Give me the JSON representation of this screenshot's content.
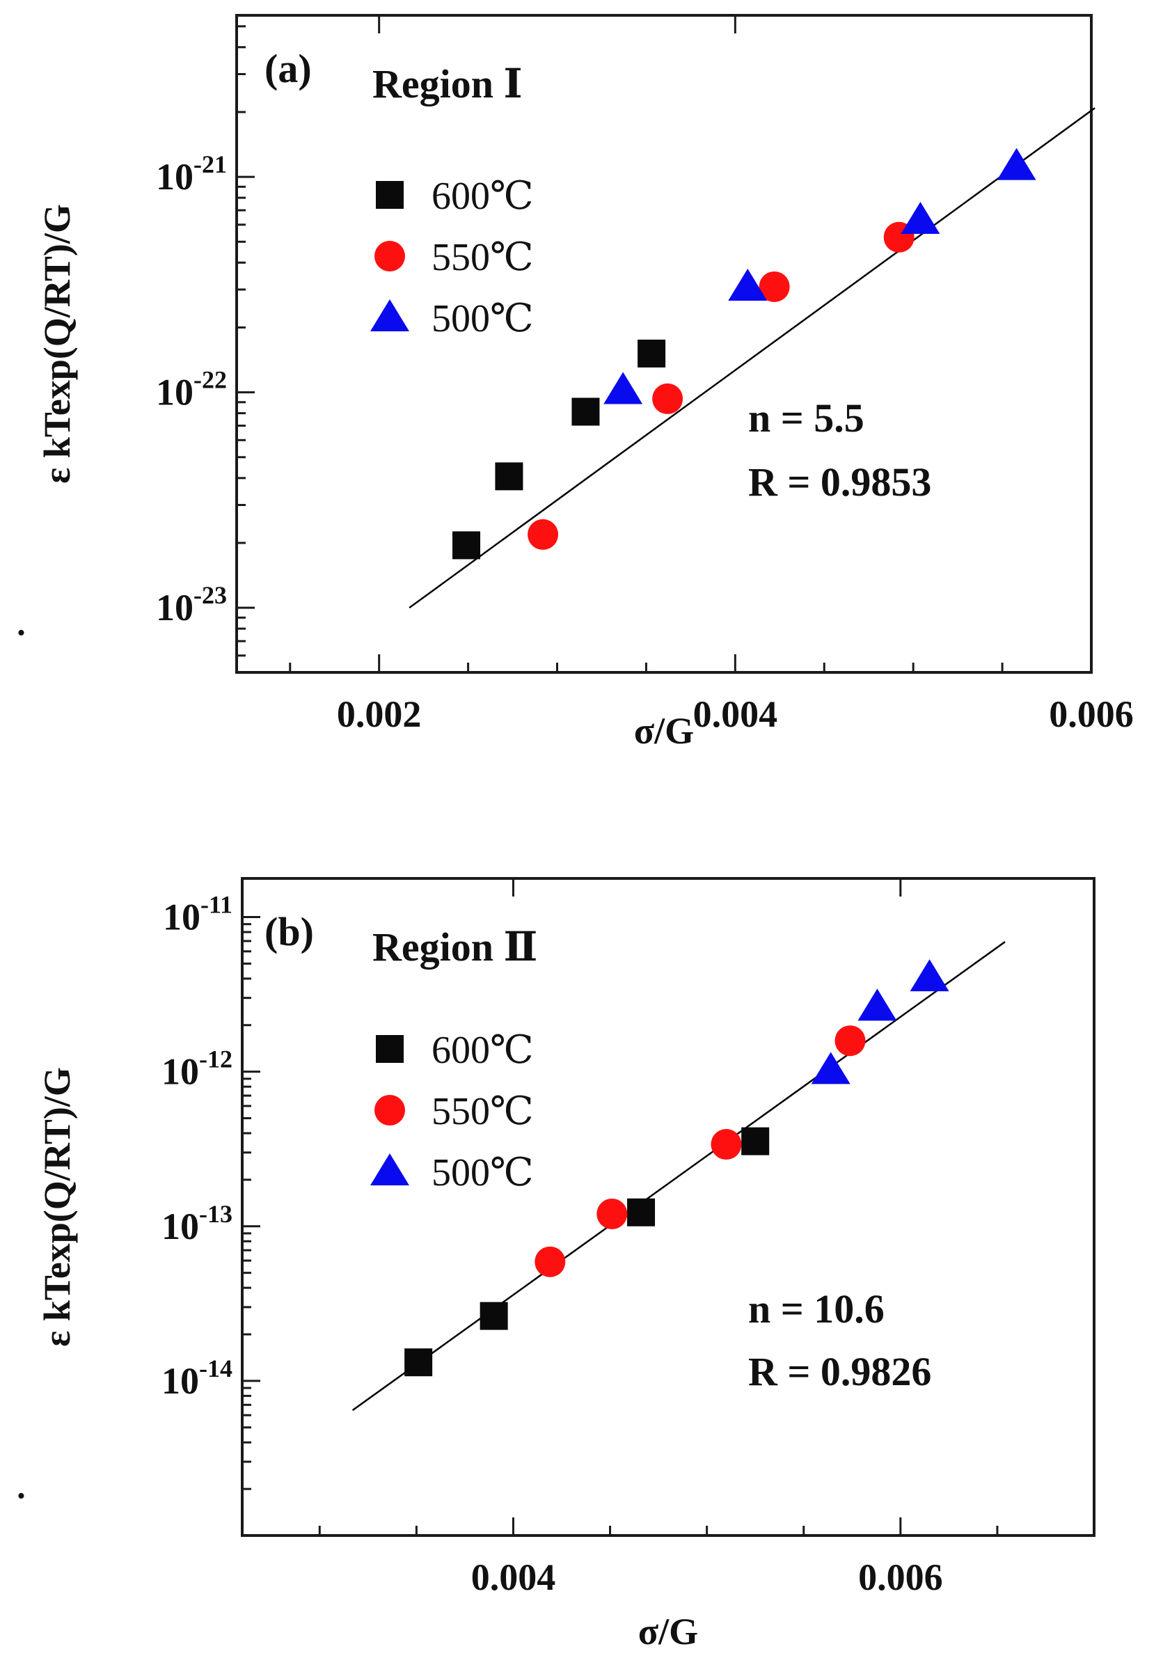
{
  "colors": {
    "600C": "#0a0a0a",
    "550C": "#ff1010",
    "500C": "#0a0aee",
    "axis": "#1a1a1a",
    "fit": "#000000"
  },
  "chart_data": [
    {
      "type": "scatter",
      "panel_label": "(a)",
      "region_label": "Region Ⅰ",
      "xlabel": "σ/G",
      "ylabel": "ε̇ kTexp(Q/RT)/G",
      "ylabel_dot": "˙",
      "ylabel_eps": "ε",
      "ylabel_rest": "kTexp(Q/RT)/G",
      "x_scale": "linear",
      "y_scale": "log",
      "xlim": [
        0.0012,
        0.006
      ],
      "ylim": [
        -23.3,
        -20.25
      ],
      "x_ticks": [
        {
          "value": 0.002,
          "label": "0.002"
        },
        {
          "value": 0.004,
          "label": "0.004"
        },
        {
          "value": 0.006,
          "label": "0.006"
        }
      ],
      "x_minor_ticks": [
        0.0015,
        0.0025,
        0.003,
        0.0035,
        0.0045,
        0.005,
        0.0055
      ],
      "y_ticks": [
        {
          "value": -23,
          "base": "10",
          "exp": "-23"
        },
        {
          "value": -22,
          "base": "10",
          "exp": "-22"
        },
        {
          "value": -21,
          "base": "10",
          "exp": "-21"
        }
      ],
      "series": [
        {
          "name": "600℃",
          "marker": "square",
          "color_key": "600C",
          "points": [
            [
              0.00249,
              -22.71
            ],
            [
              0.00273,
              -22.39
            ],
            [
              0.00316,
              -22.09
            ],
            [
              0.00353,
              -21.82
            ]
          ]
        },
        {
          "name": "550℃",
          "marker": "circle",
          "color_key": "550C",
          "points": [
            [
              0.00292,
              -22.66
            ],
            [
              0.00362,
              -22.03
            ],
            [
              0.00422,
              -21.51
            ],
            [
              0.00492,
              -21.28
            ]
          ]
        },
        {
          "name": "500℃",
          "marker": "triangle",
          "color_key": "500C",
          "points": [
            [
              0.00337,
              -21.99
            ],
            [
              0.00407,
              -21.51
            ],
            [
              0.00504,
              -21.2
            ],
            [
              0.00558,
              -20.95
            ]
          ]
        }
      ],
      "fit": {
        "x": [
          0.00217,
          0.00602
        ],
        "y": [
          -23.0,
          -20.68
        ]
      },
      "annotations": {
        "n": "n = 5.5",
        "r": "R = 0.9853"
      }
    },
    {
      "type": "scatter",
      "panel_label": "(b)",
      "region_label": "Region Ⅱ",
      "xlabel": "σ/G",
      "ylabel": "ε̇ kTexp(Q/RT)/G",
      "ylabel_dot": "˙",
      "ylabel_eps": "ε",
      "ylabel_rest": "kTexp(Q/RT)/G",
      "x_scale": "linear",
      "y_scale": "log",
      "xlim": [
        0.0026,
        0.007
      ],
      "ylim": [
        -15.0,
        -10.75
      ],
      "x_ticks": [
        {
          "value": 0.004,
          "label": "0.004"
        },
        {
          "value": 0.006,
          "label": "0.006"
        }
      ],
      "x_minor_ticks": [
        0.003,
        0.0035,
        0.0045,
        0.005,
        0.0055,
        0.0065
      ],
      "y_ticks": [
        {
          "value": -14,
          "base": "10",
          "exp": "-14"
        },
        {
          "value": -13,
          "base": "10",
          "exp": "-13"
        },
        {
          "value": -12,
          "base": "10",
          "exp": "-12"
        },
        {
          "value": -11,
          "base": "10",
          "exp": "-11"
        }
      ],
      "series": [
        {
          "name": "600℃",
          "marker": "square",
          "color_key": "600C",
          "points": [
            [
              0.00351,
              -13.88
            ],
            [
              0.0039,
              -13.58
            ],
            [
              0.00466,
              -12.91
            ],
            [
              0.00525,
              -12.45
            ]
          ]
        },
        {
          "name": "550℃",
          "marker": "circle",
          "color_key": "550C",
          "points": [
            [
              0.00419,
              -13.23
            ],
            [
              0.00451,
              -12.92
            ],
            [
              0.0051,
              -12.47
            ],
            [
              0.00574,
              -11.8
            ]
          ]
        },
        {
          "name": "500℃",
          "marker": "triangle",
          "color_key": "500C",
          "points": [
            [
              0.00564,
              -11.99
            ],
            [
              0.00588,
              -11.58
            ],
            [
              0.00615,
              -11.39
            ]
          ]
        }
      ],
      "fit": {
        "x": [
          0.00317,
          0.00654
        ],
        "y": [
          -14.19,
          -11.16
        ]
      },
      "annotations": {
        "n": "n = 10.6",
        "r": "R = 0.9826"
      }
    }
  ]
}
